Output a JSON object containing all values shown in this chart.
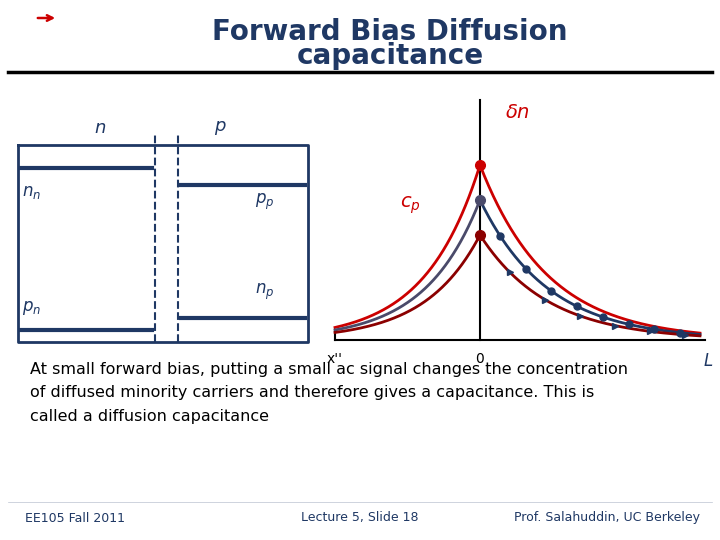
{
  "title_line1": "Forward Bias Diffusion",
  "title_line2": "capacitance",
  "title_color": "#1F3864",
  "title_fontsize": 20,
  "bg_color": "#FFFFFF",
  "body_text": "At small forward bias, putting a small ac signal changes the concentration\nof diffused minority carriers and therefore gives a capacitance. This is\ncalled a diffusion capacitance",
  "body_fontsize": 11.5,
  "footer_left": "EE105 Fall 2011",
  "footer_center": "Lecture 5, Slide 18",
  "footer_right": "Prof. Salahuddin, UC Berkeley",
  "footer_fontsize": 9,
  "footer_color": "#1F3864",
  "diagram_color": "#1F3864",
  "red_color": "#CC0000",
  "dark_blue": "#00008B",
  "dark_red": "#8B0000",
  "gray_blue": "#4A4A6A"
}
